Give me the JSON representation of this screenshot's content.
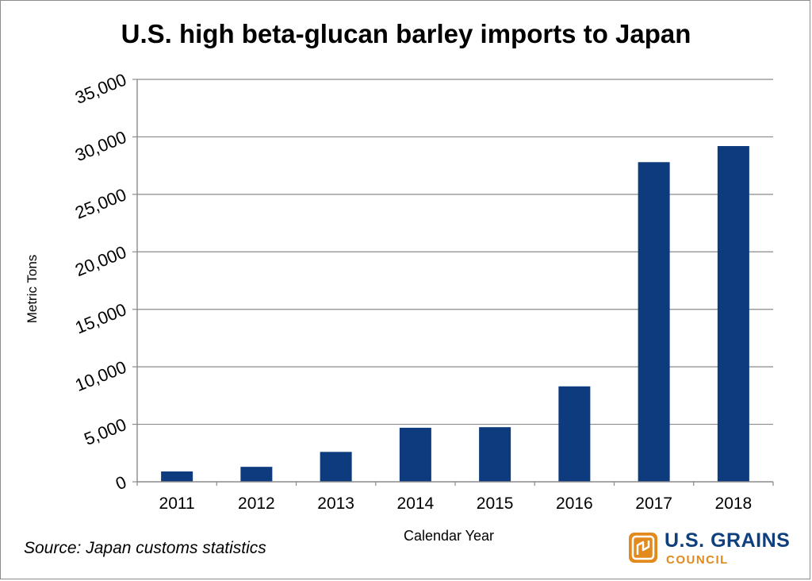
{
  "chart_data": {
    "type": "bar",
    "title": "U.S. high beta-glucan barley imports to Japan",
    "xlabel": "Calendar Year",
    "ylabel": "Metric Tons",
    "categories": [
      "2011",
      "2012",
      "2013",
      "2014",
      "2015",
      "2016",
      "2017",
      "2018"
    ],
    "values": [
      900,
      1300,
      2600,
      4700,
      4750,
      8300,
      27800,
      29200
    ],
    "ylim": [
      0,
      35000
    ],
    "yticks": [
      0,
      5000,
      10000,
      15000,
      20000,
      25000,
      30000,
      35000
    ],
    "ytick_labels": [
      "0",
      "5,000",
      "10,000",
      "15,000",
      "20,000",
      "25,000",
      "30,000",
      "35,000"
    ],
    "grid": true,
    "bar_color": "#0d3b7e"
  },
  "source_note": "Source: Japan customs statistics",
  "logo": {
    "title": "U.S. GRAINS",
    "subtitle": "COUNCIL",
    "title_color": "#0f3f7d",
    "accent_color": "#e28a1e"
  }
}
